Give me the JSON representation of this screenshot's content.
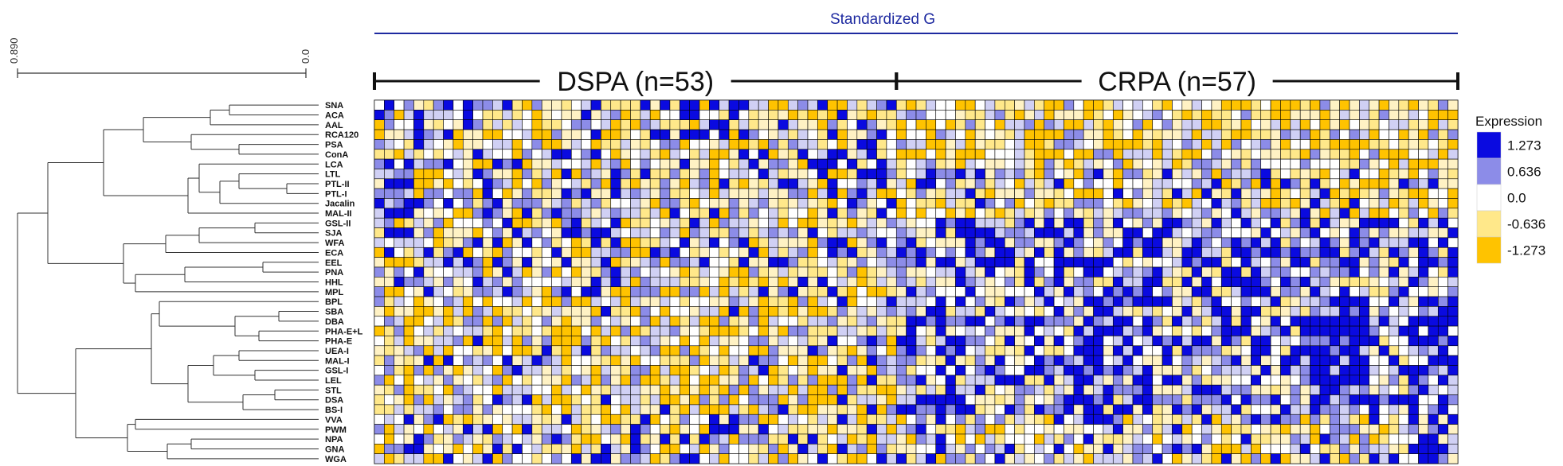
{
  "chart_data": {
    "type": "heatmap",
    "title": "Standardized G",
    "groups": [
      {
        "label": "DSPA (n=53)",
        "n": 53
      },
      {
        "label": "CRPA (n=57)",
        "n": 57
      }
    ],
    "rows": [
      "SNA",
      "ACA",
      "AAL",
      "RCA120",
      "PSA",
      "ConA",
      "LCA",
      "LTL",
      "PTL-II",
      "PTL-I",
      "Jacalin",
      "MAL-II",
      "GSL-II",
      "SJA",
      "WFA",
      "ECA",
      "EEL",
      "PNA",
      "HHL",
      "MPL",
      "BPL",
      "SBA",
      "DBA",
      "PHA-E+L",
      "PHA-E",
      "UEA-I",
      "MAL-I",
      "GSL-I",
      "LEL",
      "STL",
      "DSA",
      "BS-I",
      "VVA",
      "PWM",
      "NPA",
      "GNA",
      "WGA"
    ],
    "dendrogram_ticks": [
      "0.890",
      "0.0"
    ],
    "legend": {
      "title": "Expression",
      "levels": [
        "1.273",
        "0.636",
        "0.0",
        "-0.636",
        "-1.273"
      ],
      "colors": [
        "#0a0ae0",
        "#8c8ce8",
        "#ffffff",
        "#ffe88a",
        "#ffc300"
      ]
    },
    "colors": {
      "high": "#0a0ae0",
      "mid_high": "#8c8ce8",
      "light_high": "#d0d0f4",
      "neutral": "#ffffff",
      "light_low": "#fff2c4",
      "mid_low": "#ffe88a",
      "low": "#ffc300",
      "title_color": "#1e2aa0",
      "rule_color": "#1e2aa0"
    }
  }
}
